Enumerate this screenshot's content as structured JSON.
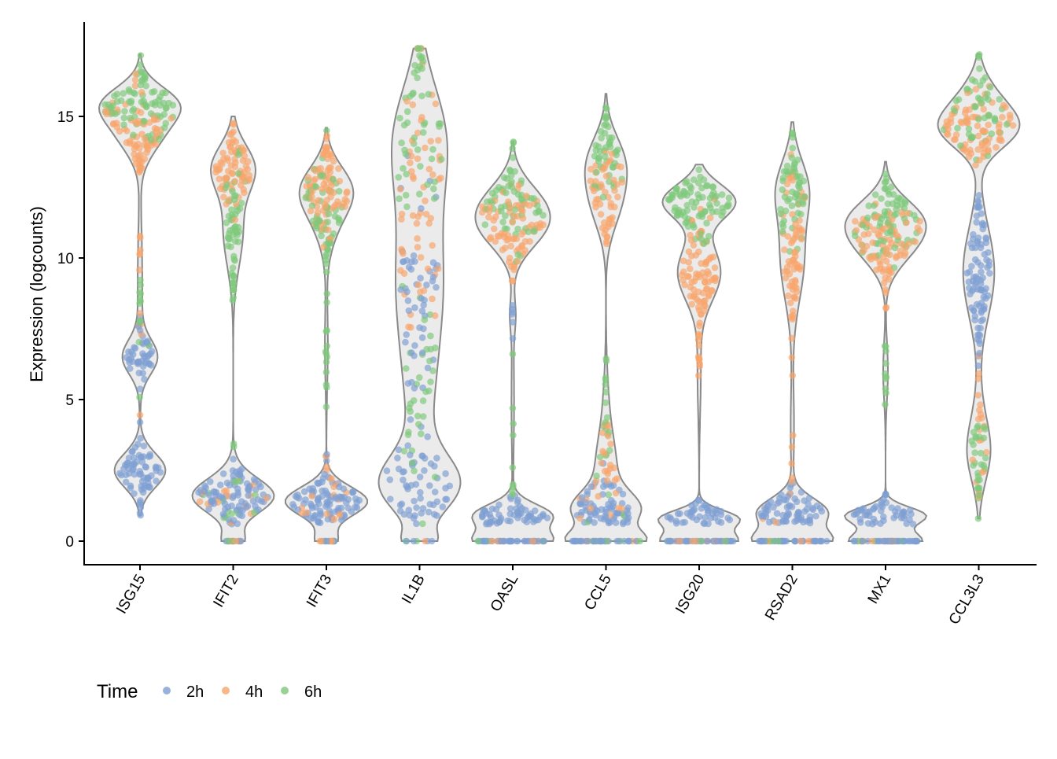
{
  "chart_data": {
    "type": "violin",
    "title": "",
    "xlabel": "",
    "ylabel": "Expression (logcounts)",
    "ylim": [
      -0.8,
      18.2
    ],
    "yticks": [
      0,
      5,
      10,
      15
    ],
    "grid": false,
    "legend": {
      "title": "Time",
      "placement": "bottom-left",
      "entries": [
        "2h",
        "4h",
        "6h"
      ]
    },
    "colors": {
      "2h": "#7f9fd3",
      "4h": "#f7a56c",
      "6h": "#7ec87a",
      "violin_fill": "#ebebeb",
      "violin_stroke": "#8a8a8a"
    },
    "categories": [
      "ISG15",
      "IFIT2",
      "IFIT3",
      "IL1B",
      "OASL",
      "CCL5",
      "ISG20",
      "RSAD2",
      "MX1",
      "CCL3L3"
    ],
    "genes": [
      {
        "gene": "ISG15",
        "range": [
          0.9,
          17.2
        ],
        "groups": [
          {
            "time": "2h",
            "mean": 2.5,
            "sd": 0.6,
            "n": 70
          },
          {
            "time": "2h",
            "mean": 6.5,
            "sd": 0.6,
            "n": 45
          },
          {
            "time": "4h",
            "mean": 14.5,
            "sd": 0.8,
            "n": 80
          },
          {
            "time": "4h",
            "mean": 10,
            "sd": 2,
            "n": 12
          },
          {
            "time": "6h",
            "mean": 15.5,
            "sd": 0.6,
            "n": 80
          },
          {
            "time": "6h",
            "mean": 8,
            "sd": 2,
            "n": 12
          }
        ]
      },
      {
        "gene": "IFIT2",
        "range": [
          0,
          15
        ],
        "zeros": {
          "2h": 10,
          "4h": 4,
          "6h": 3
        },
        "groups": [
          {
            "time": "2h",
            "mean": 1.6,
            "sd": 0.6,
            "n": 90
          },
          {
            "time": "4h",
            "mean": 13.2,
            "sd": 0.8,
            "n": 75
          },
          {
            "time": "6h",
            "mean": 11,
            "sd": 1.3,
            "n": 60
          },
          {
            "time": "6h",
            "mean": 1.8,
            "sd": 0.8,
            "n": 15
          },
          {
            "time": "4h",
            "mean": 1.5,
            "sd": 0.6,
            "n": 15
          }
        ]
      },
      {
        "gene": "IFIT3",
        "range": [
          0,
          14.6
        ],
        "zeros": {
          "2h": 12,
          "4h": 6,
          "6h": 2
        },
        "groups": [
          {
            "time": "2h",
            "mean": 1.4,
            "sd": 0.5,
            "n": 95
          },
          {
            "time": "4h",
            "mean": 12.5,
            "sd": 0.8,
            "n": 85
          },
          {
            "time": "6h",
            "mean": 11.5,
            "sd": 1,
            "n": 60
          },
          {
            "time": "6h",
            "mean": 7,
            "sd": 1.5,
            "n": 12
          },
          {
            "time": "4h",
            "mean": 1.4,
            "sd": 0.6,
            "n": 20
          }
        ]
      },
      {
        "gene": "IL1B",
        "range": [
          0,
          17.4
        ],
        "zeros": {
          "2h": 4,
          "4h": 1,
          "6h": 2
        },
        "groups": [
          {
            "time": "2h",
            "mean": 2,
            "sd": 1,
            "n": 60
          },
          {
            "time": "2h",
            "mean": 8.5,
            "sd": 2,
            "n": 50
          },
          {
            "time": "4h",
            "mean": 12,
            "sd": 2.5,
            "n": 60
          },
          {
            "time": "6h",
            "mean": 14.5,
            "sd": 1.8,
            "n": 50
          },
          {
            "time": "6h",
            "mean": 5,
            "sd": 2,
            "n": 35
          }
        ]
      },
      {
        "gene": "OASL",
        "range": [
          0,
          14.1
        ],
        "zeros": {
          "2h": 40,
          "4h": 6,
          "6h": 4
        },
        "groups": [
          {
            "time": "2h",
            "mean": 0.9,
            "sd": 0.4,
            "n": 60
          },
          {
            "time": "4h",
            "mean": 11,
            "sd": 0.8,
            "n": 75
          },
          {
            "time": "6h",
            "mean": 12,
            "sd": 0.8,
            "n": 65
          },
          {
            "time": "6h",
            "mean": 5,
            "sd": 2,
            "n": 10
          },
          {
            "time": "2h",
            "mean": 8,
            "sd": 0.6,
            "n": 6
          }
        ]
      },
      {
        "gene": "CCL5",
        "range": [
          0,
          15.8
        ],
        "zeros": {
          "2h": 30,
          "4h": 8,
          "6h": 6
        },
        "groups": [
          {
            "time": "2h",
            "mean": 1.1,
            "sd": 0.6,
            "n": 70
          },
          {
            "time": "4h",
            "mean": 12,
            "sd": 1,
            "n": 50
          },
          {
            "time": "4h",
            "mean": 2.5,
            "sd": 1,
            "n": 30
          },
          {
            "time": "6h",
            "mean": 13.5,
            "sd": 0.9,
            "n": 50
          },
          {
            "time": "6h",
            "mean": 4,
            "sd": 1.5,
            "n": 20
          }
        ]
      },
      {
        "gene": "ISG20",
        "range": [
          0,
          13.3
        ],
        "zeros": {
          "2h": 35,
          "4h": 10,
          "6h": 8
        },
        "groups": [
          {
            "time": "2h",
            "mean": 0.8,
            "sd": 0.3,
            "n": 45
          },
          {
            "time": "4h",
            "mean": 9.5,
            "sd": 1,
            "n": 85
          },
          {
            "time": "6h",
            "mean": 12,
            "sd": 0.6,
            "n": 85
          },
          {
            "time": "4h",
            "mean": 6,
            "sd": 1.5,
            "n": 10
          }
        ]
      },
      {
        "gene": "RSAD2",
        "range": [
          0,
          14.8
        ],
        "zeros": {
          "2h": 35,
          "4h": 8,
          "6h": 6
        },
        "groups": [
          {
            "time": "2h",
            "mean": 1,
            "sd": 0.5,
            "n": 70
          },
          {
            "time": "4h",
            "mean": 10,
            "sd": 1.5,
            "n": 70
          },
          {
            "time": "6h",
            "mean": 12.5,
            "sd": 1,
            "n": 55
          },
          {
            "time": "4h",
            "mean": 4,
            "sd": 1.5,
            "n": 10
          }
        ]
      },
      {
        "gene": "MX1",
        "range": [
          0,
          13.4
        ],
        "zeros": {
          "2h": 40,
          "4h": 8,
          "6h": 6
        },
        "groups": [
          {
            "time": "2h",
            "mean": 0.9,
            "sd": 0.3,
            "n": 50
          },
          {
            "time": "4h",
            "mean": 10.5,
            "sd": 0.8,
            "n": 85
          },
          {
            "time": "6h",
            "mean": 11.5,
            "sd": 0.7,
            "n": 75
          },
          {
            "time": "6h",
            "mean": 6,
            "sd": 1,
            "n": 10
          }
        ]
      },
      {
        "gene": "CCL3L3",
        "range": [
          0.8,
          17.2
        ],
        "groups": [
          {
            "time": "2h",
            "mean": 9.5,
            "sd": 1.6,
            "n": 90
          },
          {
            "time": "4h",
            "mean": 14.5,
            "sd": 0.7,
            "n": 80
          },
          {
            "time": "6h",
            "mean": 15.5,
            "sd": 0.8,
            "n": 50
          },
          {
            "time": "6h",
            "mean": 3,
            "sd": 1,
            "n": 30
          },
          {
            "time": "4h",
            "mean": 4,
            "sd": 1.2,
            "n": 20
          }
        ]
      }
    ]
  }
}
